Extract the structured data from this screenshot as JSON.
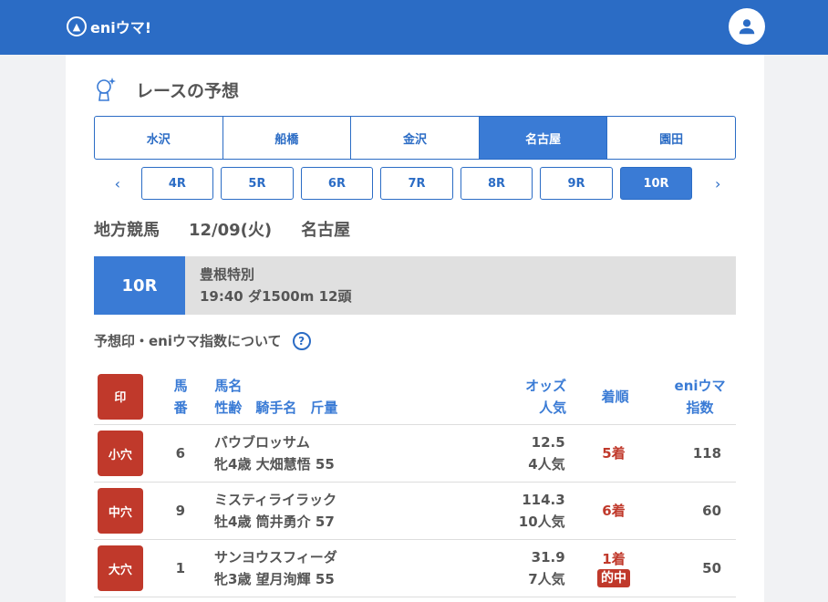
{
  "header": {
    "logo": "eniウマ!"
  },
  "page_title": "レースの予想",
  "venues": [
    {
      "label": "水沢",
      "active": false
    },
    {
      "label": "船橋",
      "active": false
    },
    {
      "label": "金沢",
      "active": false
    },
    {
      "label": "名古屋",
      "active": true
    },
    {
      "label": "園田",
      "active": false
    }
  ],
  "races": [
    {
      "label": "4R"
    },
    {
      "label": "5R"
    },
    {
      "label": "6R"
    },
    {
      "label": "7R"
    },
    {
      "label": "8R"
    },
    {
      "label": "9R"
    },
    {
      "label": "10R",
      "active": true
    }
  ],
  "race_info": {
    "category": "地方競馬",
    "date": "12/09(火)",
    "venue": "名古屋"
  },
  "race_box": {
    "num": "10R",
    "name": "豊根特別",
    "detail": "19:40 ダ1500m 12頭"
  },
  "about_link": "予想印・eniウマ指数について",
  "table": {
    "headers": {
      "mark": "印",
      "num1": "馬",
      "num2": "番",
      "name1": "馬名",
      "name2": "性齢　騎手名　斤量",
      "odds1": "オッズ",
      "odds2": "人気",
      "result": "着順",
      "idx1": "eniウマ",
      "idx2": "指数"
    },
    "rows": [
      {
        "mark": "小穴",
        "num": "6",
        "name": "バウブロッサム",
        "sub": "牝4歳 大畑慧悟 55",
        "odds": "12.5",
        "pop": "4人気",
        "result": "5着",
        "hit": "",
        "index": "118"
      },
      {
        "mark": "中穴",
        "num": "9",
        "name": "ミスティライラック",
        "sub": "牡4歳 筒井勇介 57",
        "odds": "114.3",
        "pop": "10人気",
        "result": "6着",
        "hit": "",
        "index": "60"
      },
      {
        "mark": "大穴",
        "num": "1",
        "name": "サンヨウスフィーダ",
        "sub": "牝3歳 望月洵輝 55",
        "odds": "31.9",
        "pop": "7人気",
        "result": "1着",
        "hit": "的中",
        "index": "50"
      }
    ]
  },
  "colors": {
    "brand": "#2b6cc5",
    "mark": "#c0392b"
  }
}
